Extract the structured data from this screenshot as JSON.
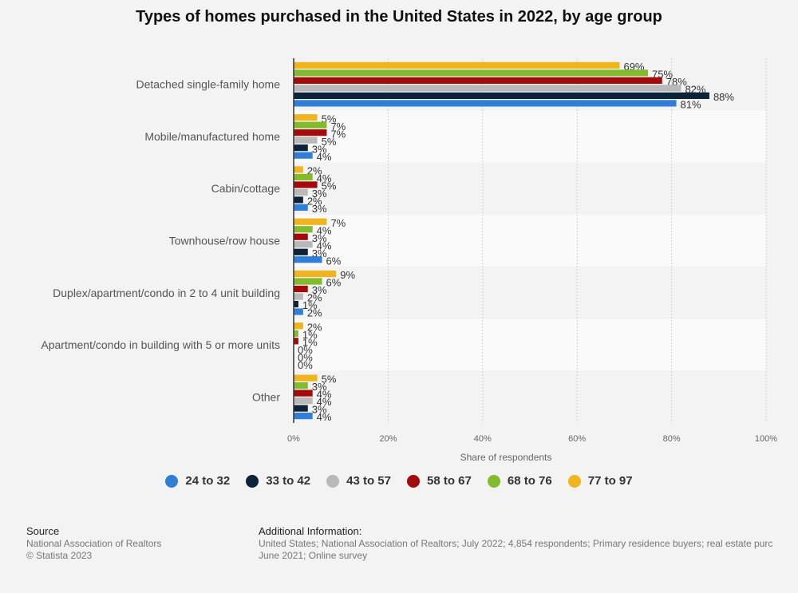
{
  "title": "Types of homes purchased in the United States in 2022, by age group",
  "footer": {
    "source_heading": "Source",
    "source_lines": [
      "National Association of Realtors",
      "© Statista 2023"
    ],
    "info_heading": "Additional Information:",
    "info_lines": [
      "United States; National Association of Realtors; July 2022; 4,854 respondents; Primary residence buyers; real estate purc",
      "June 2021; Online survey"
    ]
  },
  "chart_data": {
    "type": "bar",
    "orientation": "horizontal",
    "title": "Types of homes purchased in the United States in 2022, by age group",
    "xlabel": "Share of respondents",
    "ylabel": "",
    "xlim": [
      0,
      100
    ],
    "xticks": [
      "0%",
      "20%",
      "40%",
      "60%",
      "80%",
      "100%"
    ],
    "grid": true,
    "legend_position": "bottom",
    "value_suffix": "%",
    "categories": [
      "Detached single-family home",
      "Mobile/manufactured home",
      "Cabin/cottage",
      "Townhouse/row house",
      "Duplex/apartment/condo in 2 to 4 unit building",
      "Apartment/condo in building with 5 or more units",
      "Other"
    ],
    "series": [
      {
        "name": "24 to 32",
        "color": "#2f7ed8",
        "values": [
          81,
          4,
          3,
          6,
          2,
          0,
          4
        ]
      },
      {
        "name": "33 to 42",
        "color": "#0d233a",
        "values": [
          88,
          3,
          2,
          3,
          1,
          0,
          3
        ]
      },
      {
        "name": "43 to 57",
        "color": "#b9b9b9",
        "values": [
          82,
          5,
          3,
          4,
          2,
          0,
          4
        ]
      },
      {
        "name": "58 to 67",
        "color": "#a30b0b",
        "values": [
          78,
          7,
          5,
          3,
          3,
          1,
          4
        ]
      },
      {
        "name": "68 to 76",
        "color": "#82bb2d",
        "values": [
          75,
          7,
          4,
          4,
          6,
          1,
          3
        ]
      },
      {
        "name": "77 to 97",
        "color": "#f0b51e",
        "values": [
          69,
          5,
          2,
          7,
          9,
          2,
          5
        ]
      }
    ]
  }
}
